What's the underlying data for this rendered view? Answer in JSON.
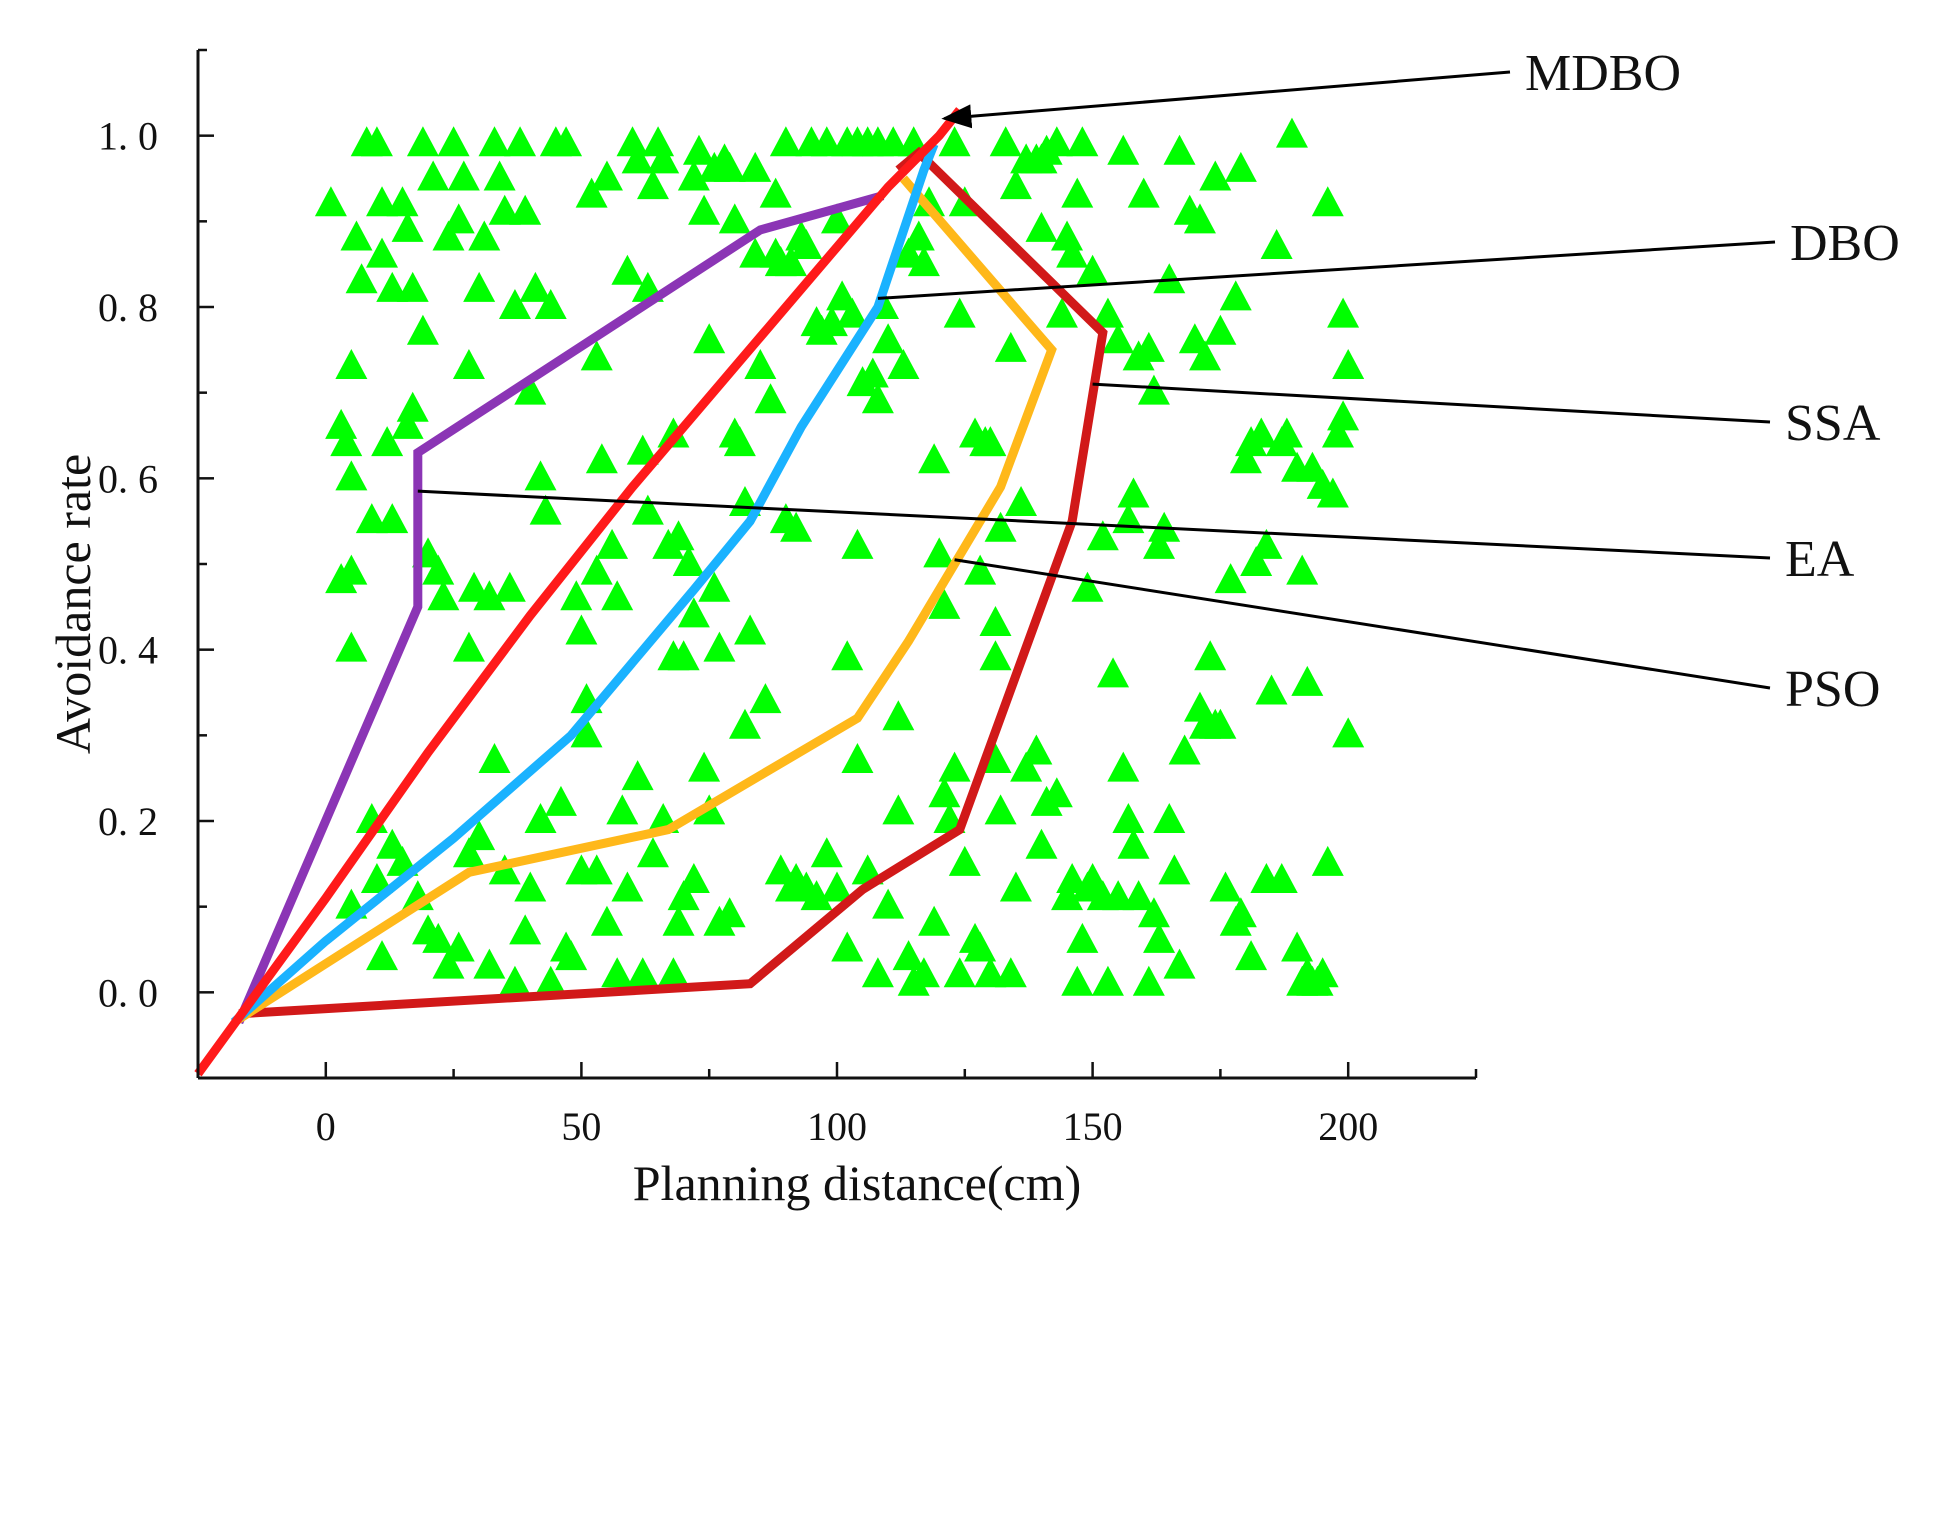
{
  "chart_data": {
    "type": "line",
    "title": "",
    "xlabel": "Planning distance(cm)",
    "ylabel": "Avoidance rate",
    "xlim": [
      -25,
      225
    ],
    "ylim": [
      -0.1,
      1.1
    ],
    "xticks": [
      0,
      50,
      100,
      150,
      200
    ],
    "xtick_labels": [
      "0",
      "50",
      "100",
      "150",
      "200"
    ],
    "yticks": [
      0.0,
      0.2,
      0.4,
      0.6,
      0.8,
      1.0
    ],
    "ytick_labels": [
      "0. 0",
      "0. 2",
      "0. 4",
      "0. 6",
      "0. 8",
      "1. 0"
    ],
    "grid": false,
    "scatter_color": "#00ff00",
    "scatter_points": [
      [
        1,
        0.92
      ],
      [
        3,
        0.66
      ],
      [
        4,
        0.64
      ],
      [
        5,
        0.6
      ],
      [
        3,
        0.48
      ],
      [
        5,
        0.49
      ],
      [
        5,
        0.4
      ],
      [
        5,
        0.73
      ],
      [
        6,
        0.88
      ],
      [
        7,
        0.83
      ],
      [
        8,
        0.99
      ],
      [
        9,
        0.55
      ],
      [
        10,
        0.99
      ],
      [
        11,
        0.92
      ],
      [
        11,
        0.86
      ],
      [
        12,
        0.64
      ],
      [
        13,
        0.55
      ],
      [
        13,
        0.82
      ],
      [
        15,
        0.92
      ],
      [
        16,
        0.89
      ],
      [
        16,
        0.66
      ],
      [
        17,
        0.68
      ],
      [
        17,
        0.82
      ],
      [
        19,
        0.99
      ],
      [
        19,
        0.77
      ],
      [
        20,
        0.51
      ],
      [
        21,
        0.95
      ],
      [
        22,
        0.49
      ],
      [
        23,
        0.46
      ],
      [
        24,
        0.88
      ],
      [
        25,
        0.99
      ],
      [
        26,
        0.9
      ],
      [
        27,
        0.95
      ],
      [
        28,
        0.73
      ],
      [
        28,
        0.4
      ],
      [
        29,
        0.47
      ],
      [
        30,
        0.82
      ],
      [
        31,
        0.88
      ],
      [
        32,
        0.46
      ],
      [
        33,
        0.99
      ],
      [
        34,
        0.95
      ],
      [
        35,
        0.91
      ],
      [
        36,
        0.47
      ],
      [
        37,
        0.8
      ],
      [
        38,
        0.99
      ],
      [
        39,
        0.91
      ],
      [
        40,
        0.7
      ],
      [
        41,
        0.82
      ],
      [
        42,
        0.6
      ],
      [
        43,
        0.56
      ],
      [
        44,
        0.8
      ],
      [
        45,
        0.99
      ],
      [
        47,
        0.99
      ],
      [
        49,
        0.46
      ],
      [
        50,
        0.42
      ],
      [
        51,
        0.34
      ],
      [
        52,
        0.93
      ],
      [
        53,
        0.74
      ],
      [
        53,
        0.49
      ],
      [
        54,
        0.62
      ],
      [
        55,
        0.95
      ],
      [
        56,
        0.52
      ],
      [
        57,
        0.46
      ],
      [
        59,
        0.84
      ],
      [
        60,
        0.99
      ],
      [
        61,
        0.97
      ],
      [
        62,
        0.63
      ],
      [
        63,
        0.82
      ],
      [
        63,
        0.56
      ],
      [
        64,
        0.94
      ],
      [
        65,
        0.99
      ],
      [
        66,
        0.97
      ],
      [
        67,
        0.52
      ],
      [
        68,
        0.39
      ],
      [
        68,
        0.65
      ],
      [
        69,
        0.53
      ],
      [
        70,
        0.39
      ],
      [
        71,
        0.5
      ],
      [
        72,
        0.95
      ],
      [
        72,
        0.44
      ],
      [
        73,
        0.98
      ],
      [
        74,
        0.91
      ],
      [
        75,
        0.76
      ],
      [
        76,
        0.47
      ],
      [
        76,
        0.96
      ],
      [
        77,
        0.4
      ],
      [
        78,
        0.97
      ],
      [
        79,
        0.96
      ],
      [
        80,
        0.9
      ],
      [
        80,
        0.65
      ],
      [
        81,
        0.64
      ],
      [
        82,
        0.57
      ],
      [
        82,
        0.31
      ],
      [
        83,
        0.42
      ],
      [
        84,
        0.86
      ],
      [
        84,
        0.96
      ],
      [
        85,
        0.73
      ],
      [
        86,
        0.34
      ],
      [
        87,
        0.69
      ],
      [
        88,
        0.86
      ],
      [
        88,
        0.93
      ],
      [
        89,
        0.85
      ],
      [
        90,
        0.55
      ],
      [
        90,
        0.99
      ],
      [
        91,
        0.85
      ],
      [
        92,
        0.54
      ],
      [
        93,
        0.88
      ],
      [
        94,
        0.87
      ],
      [
        95,
        0.99
      ],
      [
        96,
        0.78
      ],
      [
        97,
        0.77
      ],
      [
        98,
        0.99
      ],
      [
        99,
        0.78
      ],
      [
        100,
        0.9
      ],
      [
        101,
        0.81
      ],
      [
        102,
        0.99
      ],
      [
        102,
        0.39
      ],
      [
        103,
        0.79
      ],
      [
        104,
        0.52
      ],
      [
        104,
        0.99
      ],
      [
        105,
        0.71
      ],
      [
        106,
        0.99
      ],
      [
        107,
        0.72
      ],
      [
        108,
        0.69
      ],
      [
        108,
        0.99
      ],
      [
        109,
        0.8
      ],
      [
        110,
        0.76
      ],
      [
        111,
        0.99
      ],
      [
        112,
        0.32
      ],
      [
        113,
        0.73
      ],
      [
        114,
        0.86
      ],
      [
        115,
        0.99
      ],
      [
        116,
        0.88
      ],
      [
        117,
        0.85
      ],
      [
        118,
        0.92
      ],
      [
        119,
        0.62
      ],
      [
        120,
        0.51
      ],
      [
        121,
        0.45
      ],
      [
        123,
        0.99
      ],
      [
        124,
        0.79
      ],
      [
        125,
        0.92
      ],
      [
        127,
        0.65
      ],
      [
        128,
        0.49
      ],
      [
        129,
        0.64
      ],
      [
        130,
        0.64
      ],
      [
        131,
        0.39
      ],
      [
        131,
        0.43
      ],
      [
        132,
        0.54
      ],
      [
        133,
        0.99
      ],
      [
        134,
        0.75
      ],
      [
        135,
        0.94
      ],
      [
        136,
        0.57
      ],
      [
        137,
        0.97
      ],
      [
        139,
        0.97
      ],
      [
        140,
        0.97
      ],
      [
        140,
        0.89
      ],
      [
        141,
        0.98
      ],
      [
        143,
        0.99
      ],
      [
        144,
        0.79
      ],
      [
        145,
        0.88
      ],
      [
        146,
        0.86
      ],
      [
        147,
        0.93
      ],
      [
        148,
        0.99
      ],
      [
        149,
        0.47
      ],
      [
        150,
        0.84
      ],
      [
        152,
        0.53
      ],
      [
        153,
        0.79
      ],
      [
        154,
        0.37
      ],
      [
        155,
        0.76
      ],
      [
        156,
        0.98
      ],
      [
        157,
        0.55
      ],
      [
        158,
        0.58
      ],
      [
        159,
        0.74
      ],
      [
        160,
        0.93
      ],
      [
        161,
        0.75
      ],
      [
        162,
        0.7
      ],
      [
        163,
        0.52
      ],
      [
        164,
        0.54
      ],
      [
        165,
        0.83
      ],
      [
        167,
        0.98
      ],
      [
        169,
        0.91
      ],
      [
        170,
        0.76
      ],
      [
        171,
        0.9
      ],
      [
        172,
        0.74
      ],
      [
        173,
        0.39
      ],
      [
        174,
        0.95
      ],
      [
        175,
        0.31
      ],
      [
        175,
        0.77
      ],
      [
        177,
        0.48
      ],
      [
        178,
        0.81
      ],
      [
        179,
        0.96
      ],
      [
        180,
        0.62
      ],
      [
        181,
        0.64
      ],
      [
        182,
        0.5
      ],
      [
        183,
        0.65
      ],
      [
        184,
        0.52
      ],
      [
        185,
        0.35
      ],
      [
        186,
        0.87
      ],
      [
        187,
        0.64
      ],
      [
        188,
        0.65
      ],
      [
        189,
        1.0
      ],
      [
        190,
        0.61
      ],
      [
        191,
        0.49
      ],
      [
        192,
        0.36
      ],
      [
        193,
        0.61
      ],
      [
        195,
        0.59
      ],
      [
        196,
        0.92
      ],
      [
        197,
        0.58
      ],
      [
        198,
        0.65
      ],
      [
        199,
        0.67
      ],
      [
        199,
        0.79
      ],
      [
        200,
        0.73
      ],
      [
        200,
        0.3
      ],
      [
        5,
        0.1
      ],
      [
        9,
        0.2
      ],
      [
        10,
        0.13
      ],
      [
        11,
        0.04
      ],
      [
        13,
        0.17
      ],
      [
        15,
        0.15
      ],
      [
        18,
        0.11
      ],
      [
        20,
        0.07
      ],
      [
        22,
        0.06
      ],
      [
        24,
        0.03
      ],
      [
        26,
        0.05
      ],
      [
        28,
        0.16
      ],
      [
        30,
        0.18
      ],
      [
        32,
        0.03
      ],
      [
        33,
        0.27
      ],
      [
        35,
        0.14
      ],
      [
        37,
        0.01
      ],
      [
        39,
        0.07
      ],
      [
        40,
        0.12
      ],
      [
        42,
        0.2
      ],
      [
        44,
        0.01
      ],
      [
        46,
        0.22
      ],
      [
        47,
        0.05
      ],
      [
        48,
        0.04
      ],
      [
        50,
        0.14
      ],
      [
        51,
        0.3
      ],
      [
        53,
        0.14
      ],
      [
        55,
        0.08
      ],
      [
        57,
        0.02
      ],
      [
        58,
        0.21
      ],
      [
        59,
        0.12
      ],
      [
        61,
        0.25
      ],
      [
        62,
        0.02
      ],
      [
        64,
        0.16
      ],
      [
        66,
        0.2
      ],
      [
        68,
        0.02
      ],
      [
        69,
        0.08
      ],
      [
        70,
        0.11
      ],
      [
        72,
        0.13
      ],
      [
        74,
        0.26
      ],
      [
        75,
        0.21
      ],
      [
        77,
        0.08
      ],
      [
        79,
        0.09
      ],
      [
        89,
        0.14
      ],
      [
        91,
        0.12
      ],
      [
        92,
        0.13
      ],
      [
        94,
        0.12
      ],
      [
        96,
        0.11
      ],
      [
        98,
        0.16
      ],
      [
        100,
        0.12
      ],
      [
        102,
        0.05
      ],
      [
        104,
        0.27
      ],
      [
        106,
        0.14
      ],
      [
        108,
        0.02
      ],
      [
        110,
        0.1
      ],
      [
        112,
        0.21
      ],
      [
        114,
        0.04
      ],
      [
        115,
        0.01
      ],
      [
        117,
        0.02
      ],
      [
        119,
        0.08
      ],
      [
        121,
        0.23
      ],
      [
        122,
        0.2
      ],
      [
        123,
        0.26
      ],
      [
        124,
        0.02
      ],
      [
        125,
        0.15
      ],
      [
        127,
        0.06
      ],
      [
        128,
        0.05
      ],
      [
        130,
        0.02
      ],
      [
        131,
        0.27
      ],
      [
        132,
        0.21
      ],
      [
        134,
        0.02
      ],
      [
        135,
        0.12
      ],
      [
        137,
        0.26
      ],
      [
        139,
        0.28
      ],
      [
        140,
        0.17
      ],
      [
        141,
        0.22
      ],
      [
        143,
        0.23
      ],
      [
        145,
        0.11
      ],
      [
        146,
        0.13
      ],
      [
        147,
        0.01
      ],
      [
        148,
        0.06
      ],
      [
        149,
        0.12
      ],
      [
        150,
        0.13
      ],
      [
        152,
        0.11
      ],
      [
        153,
        0.01
      ],
      [
        155,
        0.11
      ],
      [
        156,
        0.26
      ],
      [
        157,
        0.2
      ],
      [
        158,
        0.17
      ],
      [
        159,
        0.11
      ],
      [
        161,
        0.01
      ],
      [
        162,
        0.09
      ],
      [
        163,
        0.06
      ],
      [
        165,
        0.2
      ],
      [
        166,
        0.14
      ],
      [
        167,
        0.03
      ],
      [
        168,
        0.28
      ],
      [
        171,
        0.33
      ],
      [
        172,
        0.31
      ],
      [
        174,
        0.31
      ],
      [
        176,
        0.12
      ],
      [
        178,
        0.08
      ],
      [
        179,
        0.09
      ],
      [
        181,
        0.04
      ],
      [
        184,
        0.13
      ],
      [
        187,
        0.13
      ],
      [
        190,
        0.05
      ],
      [
        191,
        0.01
      ],
      [
        192,
        0.02
      ],
      [
        193,
        0.01
      ],
      [
        194,
        0.01
      ],
      [
        195,
        0.02
      ],
      [
        196,
        0.15
      ]
    ],
    "series": [
      {
        "name": "MDBO",
        "color": "#ff1a1a",
        "x": [
          -25,
          0,
          20,
          40,
          60,
          80,
          100,
          110,
          120,
          124
        ],
        "y": [
          -0.095,
          0.11,
          0.28,
          0.44,
          0.59,
          0.73,
          0.87,
          0.94,
          1.0,
          1.03
        ]
      },
      {
        "name": "DBO",
        "color": "#1ab2ff",
        "x": [
          -18,
          0,
          25,
          48,
          72,
          83,
          93,
          108,
          117,
          119
        ],
        "y": [
          -0.035,
          0.06,
          0.18,
          0.3,
          0.47,
          0.55,
          0.66,
          0.8,
          0.96,
          0.99
        ]
      },
      {
        "name": "SSA",
        "color": "#d11919",
        "x": [
          -17,
          83,
          105,
          124,
          146,
          152,
          116,
          112
        ],
        "y": [
          -0.025,
          0.01,
          0.12,
          0.19,
          0.55,
          0.77,
          0.98,
          0.96
        ]
      },
      {
        "name": "EA",
        "color": "#8b35b5",
        "x": [
          -17,
          18,
          18,
          18,
          85,
          109
        ],
        "y": [
          -0.035,
          0.45,
          0.55,
          0.63,
          0.89,
          0.93
        ]
      },
      {
        "name": "PSO",
        "color": "#ffb81a",
        "x": [
          -18,
          28,
          67,
          104,
          114,
          132,
          142,
          113
        ],
        "y": [
          -0.035,
          0.14,
          0.19,
          0.32,
          0.41,
          0.59,
          0.75,
          0.95
        ]
      }
    ],
    "annotations": [
      {
        "text": "MDBO",
        "series": "MDBO",
        "arrow": true,
        "target": [
          121,
          1.02
        ]
      },
      {
        "text": "DBO",
        "series": "DBO",
        "arrow": false,
        "target": [
          108,
          0.81
        ]
      },
      {
        "text": "SSA",
        "series": "SSA",
        "arrow": false,
        "target": [
          150,
          0.71
        ]
      },
      {
        "text": "EA",
        "series": "EA",
        "arrow": false,
        "target": [
          18,
          0.585
        ]
      },
      {
        "text": "PSO",
        "series": "PSO",
        "arrow": false,
        "target": [
          123,
          0.505
        ]
      }
    ]
  }
}
